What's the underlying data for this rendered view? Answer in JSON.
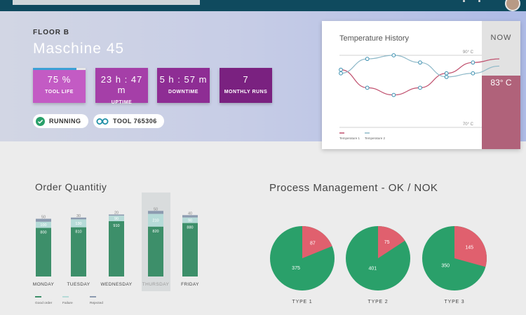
{
  "header": {
    "floor": "FLOOR B",
    "machine": "Maschine 45"
  },
  "kpis": [
    {
      "value": "75 %",
      "label": "TOOL LIFE",
      "color": "#c35bc4",
      "progress": 0.82
    },
    {
      "value": "23 h : 47 m",
      "label": "UPTIME",
      "color": "#a53fa8"
    },
    {
      "value": "5 h : 57 m",
      "label": "DOWNTIME",
      "color": "#8e2d94"
    },
    {
      "value": "7",
      "label": "MONTHLY RUNS",
      "color": "#7a2180"
    }
  ],
  "status": {
    "state": "RUNNING",
    "tool": "TOOL 765306"
  },
  "temperature": {
    "title": "Temperature History",
    "now_label": "NOW",
    "now_value": "83° C",
    "gridline_top": "90° C",
    "gridline_bottom": "70° C",
    "legend": [
      "Temperature 1",
      "Temperature 2"
    ],
    "colors": [
      "#c0506e",
      "#8db8c8"
    ]
  },
  "orders": {
    "title": "Order Quantitiy",
    "legend": [
      "Good order",
      "Failure",
      "Rejected"
    ],
    "colors": {
      "good": "#3d8f6a",
      "failure": "#b6dbd8",
      "rejected": "#8c9bb0"
    },
    "highlight_index": 3
  },
  "process": {
    "title": "Process Management - OK / NOK",
    "colors": {
      "ok": "#2aa06a",
      "nok": "#e0606e"
    }
  },
  "chart_data": [
    {
      "type": "line",
      "title": "Temperature History",
      "series": [
        {
          "name": "Temperature 1",
          "values": [
            86,
            81,
            79,
            81,
            85,
            88,
            89
          ]
        },
        {
          "name": "Temperature 2",
          "values": [
            85,
            89,
            90,
            88,
            84,
            85,
            87
          ]
        }
      ],
      "ylim": [
        68,
        92
      ]
    },
    {
      "type": "bar",
      "title": "Order Quantitiy",
      "categories": [
        "MONDAY",
        "TUESDAY",
        "WEDNESDAY",
        "THURSDAY",
        "FRIDAY"
      ],
      "series": [
        {
          "name": "Good order",
          "values": [
            800,
            810,
            910,
            820,
            880
          ]
        },
        {
          "name": "Failure",
          "values": [
            100,
            130,
            90,
            210,
            90
          ]
        },
        {
          "name": "Rejected",
          "values": [
            50,
            30,
            20,
            50,
            40
          ]
        }
      ]
    },
    {
      "type": "pie",
      "title": "Process Management - OK / NOK",
      "categories": [
        "TYPE 1",
        "TYPE 2",
        "TYPE 3"
      ],
      "ok": [
        375,
        401,
        350
      ],
      "nok": [
        87,
        75,
        145
      ]
    }
  ]
}
